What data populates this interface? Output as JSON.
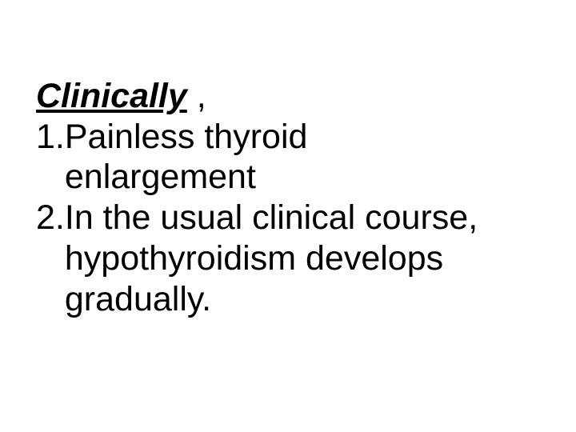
{
  "heading": "Clinically",
  "heading_suffix": " ,",
  "items": [
    {
      "num": "1. ",
      "text_line1": "Painless thyroid",
      "text_line2": "enlargement"
    },
    {
      "num": "2. ",
      "text_line1": "In the usual clinical course,",
      "text_line2": "hypothyroidism develops",
      "text_line3": "gradually."
    }
  ],
  "colors": {
    "bg": "#ffffff",
    "text": "#000000"
  },
  "typography": {
    "font_family": "Arial",
    "font_size_pt": 32
  }
}
